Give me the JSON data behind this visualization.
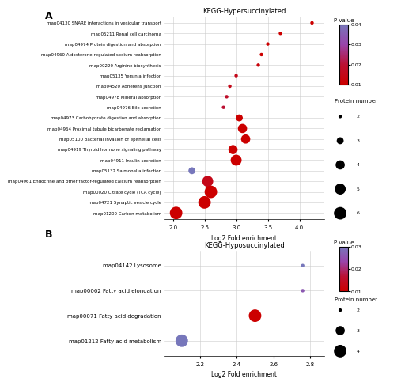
{
  "panel_A": {
    "title": "KEGG-Hypersuccinylated",
    "xlabel": "Log2 Fold enrichment",
    "pathways": [
      "map04130 SNARE interactions in vesicular transport",
      "map05211 Renal cell carcinoma",
      "map04974 Protein digestion and absorption",
      "map04960 Aldosterone-regulated sodium reabsorption",
      "map00220 Arginine biosynthesis",
      "map05135 Yersinia infection",
      "map04520 Adherens junction",
      "map04978 Mineral absorption",
      "map04976 Bile secretion",
      "map04973 Carbohydrate digestion and absorption",
      "map04964 Proximal tubule bicarbonate reclamation",
      "map05100 Bacterial invasion of epithelial cells",
      "map04919 Thyroid hormone signaling pathway",
      "map04911 Insulin secretion",
      "map05132 Salmonella infection",
      "map04961 Endocrine and other factor-regulated calcium reabsorption",
      "map00020 Citrate cycle (TCA cycle)",
      "map04721 Synaptic vesicle cycle",
      "map01200 Carbon metabolism"
    ],
    "log2_fold": [
      4.2,
      3.7,
      3.5,
      3.4,
      3.35,
      3.0,
      2.9,
      2.85,
      2.8,
      3.05,
      3.1,
      3.15,
      2.95,
      3.0,
      2.3,
      2.55,
      2.6,
      2.5,
      2.05
    ],
    "p_values": [
      0.005,
      0.008,
      0.01,
      0.01,
      0.012,
      0.015,
      0.015,
      0.018,
      0.02,
      0.01,
      0.01,
      0.01,
      0.01,
      0.01,
      0.04,
      0.015,
      0.01,
      0.01,
      0.005
    ],
    "protein_numbers": [
      2,
      2,
      2,
      2,
      2,
      2,
      2,
      2,
      2,
      3,
      4,
      4,
      4,
      5,
      3,
      5,
      6,
      6,
      6
    ],
    "xlim": [
      1.85,
      4.4
    ],
    "xticks": [
      2.0,
      2.5,
      3.0,
      3.5,
      4.0
    ],
    "pvalue_vmin": 0.01,
    "pvalue_vmax": 0.04,
    "protein_range": [
      2,
      6
    ],
    "legend_sizes": [
      2,
      3,
      4,
      5,
      6
    ]
  },
  "panel_B": {
    "title": "KEGG-Hyposuccinylated",
    "xlabel": "Log2 Fold enrichment",
    "pathways": [
      "map04142 Lysosome",
      "map00062 Fatty acid elongation",
      "map00071 Fatty acid degradation",
      "map01212 Fatty acid metabolism"
    ],
    "log2_fold": [
      2.76,
      2.76,
      2.5,
      2.1
    ],
    "p_values": [
      0.03,
      0.026,
      0.01,
      0.03
    ],
    "protein_numbers": [
      2,
      2,
      4,
      4
    ],
    "xlim": [
      2.0,
      2.88
    ],
    "xticks": [
      2.2,
      2.4,
      2.6,
      2.8
    ],
    "pvalue_vmin": 0.01,
    "pvalue_vmax": 0.03,
    "protein_range": [
      2,
      4
    ],
    "legend_sizes": [
      2,
      3,
      4
    ]
  },
  "cmap_colors": [
    "#CC0000",
    "#BB1133",
    "#9944AA",
    "#7777BB"
  ],
  "background_color": "#ffffff",
  "grid_color": "#cccccc",
  "dot_size_scale": [
    10,
    130
  ]
}
